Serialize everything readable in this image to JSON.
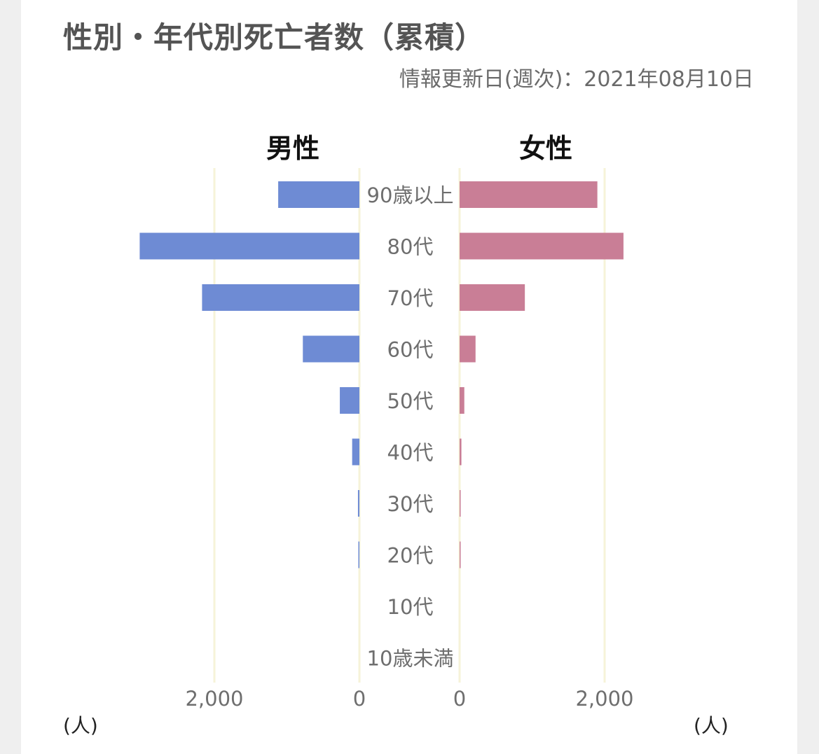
{
  "title": "性別・年代別死亡者数（累積）",
  "update_text": "情報更新日(週次)：2021年08月10日",
  "colors": {
    "male": "#6e8bd4",
    "female": "#c97e96",
    "grid": "#f6f3d9",
    "category_band": "#ffffff"
  },
  "chart_data": {
    "type": "bar",
    "orientation": "horizontal-population-pyramid",
    "categories": [
      "90歳以上",
      "80代",
      "70代",
      "60代",
      "50代",
      "40代",
      "30代",
      "20代",
      "10代",
      "10歳未満"
    ],
    "series": [
      {
        "name": "男性",
        "side": "left",
        "values": [
          1120,
          3030,
          2170,
          780,
          270,
          100,
          20,
          5,
          0,
          0
        ]
      },
      {
        "name": "女性",
        "side": "right",
        "values": [
          1900,
          2260,
          900,
          220,
          65,
          25,
          8,
          3,
          0,
          0
        ]
      }
    ],
    "x_range": [
      0,
      3300
    ],
    "ticks": [
      {
        "value": 2000,
        "label": "2,000"
      },
      {
        "value": 0,
        "label": "0"
      }
    ],
    "unit_left": "(人)",
    "unit_right": "(人)",
    "grid": true
  }
}
